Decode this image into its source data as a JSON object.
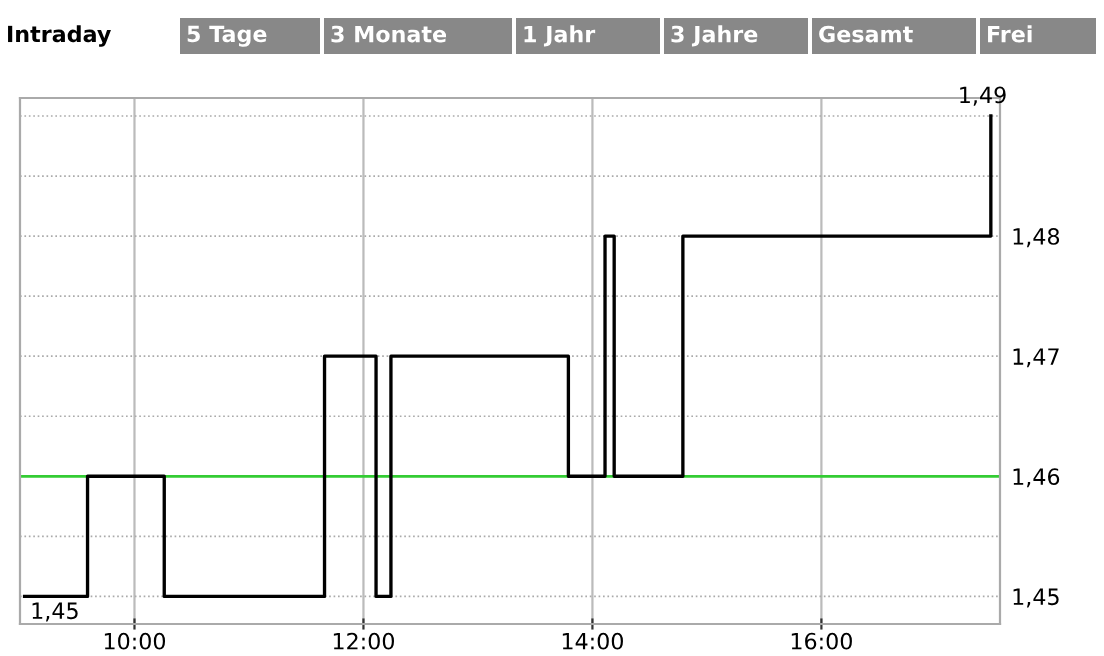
{
  "chart_data": {
    "type": "step",
    "annotations": [
      "Intraday",
      "5 Tage",
      "3 Monate",
      "1 Jahr",
      "3 Jahre",
      "Gesamt",
      "Frei",
      {
        "text": "1,45",
        "x": 9.04,
        "y": 1.45
      },
      {
        "text": "1,49",
        "x": 17.48,
        "y": 1.49
      }
    ],
    "x": [
      9.04,
      9.59,
      10.26,
      11.66,
      12.11,
      12.24,
      13.79,
      14.11,
      14.19,
      14.79,
      17.48
    ],
    "series": [
      {
        "color": "#000000",
        "values": [
          1.45,
          1.46,
          1.45,
          1.47,
          1.45,
          1.47,
          1.46,
          1.48,
          1.46,
          1.48,
          1.49
        ]
      }
    ],
    "xlim": [
      9.0,
      17.56
    ],
    "xticks": [
      {
        "value": 10,
        "label": "10:00"
      },
      {
        "value": 12,
        "label": "12:00"
      },
      {
        "value": 14,
        "label": "14:00"
      },
      {
        "value": 16,
        "label": "16:00"
      }
    ],
    "ylim": [
      1.4477,
      1.4915
    ],
    "yticks": [
      {
        "value": 1.45,
        "label": "1,45"
      },
      {
        "value": 1.455,
        "label": null
      },
      {
        "value": 1.46,
        "label": "1,46"
      },
      {
        "value": 1.465,
        "label": null
      },
      {
        "value": 1.47,
        "label": "1,47"
      },
      {
        "value": 1.475,
        "label": null
      },
      {
        "value": 1.48,
        "label": "1,48"
      },
      {
        "value": 1.485,
        "label": null
      },
      {
        "value": 1.49,
        "label": null
      }
    ],
    "ref_lines": [
      {
        "axis": "y",
        "value": 1.46,
        "color": "#33cc33"
      }
    ],
    "grid": true,
    "legend": false,
    "marker": "none",
    "line_style": "solid"
  }
}
